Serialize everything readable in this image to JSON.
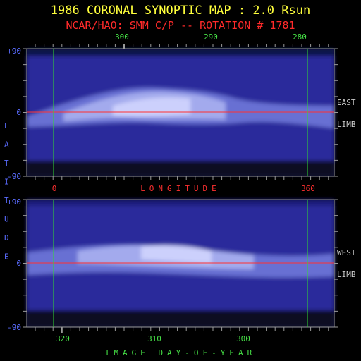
{
  "header": {
    "title": "1986 CORONAL SYNOPTIC MAP : 2.0 Rsun",
    "subtitle": "NCAR/HAO: SMM C/P -- ROTATION # 1781"
  },
  "colors": {
    "title": "#ffff3c",
    "subtitle": "#ff2a2a",
    "axis_tick_labels": "#5a6cff",
    "top_axis_labels": "#46e046",
    "longitude_labels": "#ff3030",
    "day_labels": "#46e046",
    "limb_labels": "#c8c8c8",
    "equator_line": "#ff3030",
    "marker_lines": "#32dc32",
    "frame": "#9a9a9a"
  },
  "chart_data": [
    {
      "type": "heatmap",
      "name_label": "EAST LIMB",
      "side_labels": [
        "EAST",
        "LIMB"
      ],
      "y_ticks": [
        "+90",
        "0",
        "-90"
      ],
      "ylim": [
        -90,
        90
      ],
      "top_axis_ticks": [
        "300",
        "290",
        "280"
      ],
      "bottom_axis_ticks": [
        "0",
        "360"
      ],
      "xlabel": "LONGITUDE",
      "equator_latitude": 0,
      "vertical_markers_longitude": [
        0,
        360
      ],
      "bright_band_latitude_center": [
        -5,
        15
      ],
      "colormap": "blue-to-white intensity"
    },
    {
      "type": "heatmap",
      "name_label": "WEST LIMB",
      "side_labels": [
        "WEST",
        "LIMB"
      ],
      "y_ticks": [
        "+90",
        "0",
        "-90"
      ],
      "ylim": [
        -90,
        90
      ],
      "bottom_axis_ticks": [
        "320",
        "310",
        "300"
      ],
      "xlabel": "IMAGE DAY-OF-YEAR",
      "equator_latitude": 0,
      "vertical_markers_longitude": [
        0,
        360
      ],
      "bright_band_latitude_center": [
        5,
        20
      ],
      "colormap": "blue-to-white intensity"
    }
  ],
  "shared_ylabel": "LATITUDE"
}
